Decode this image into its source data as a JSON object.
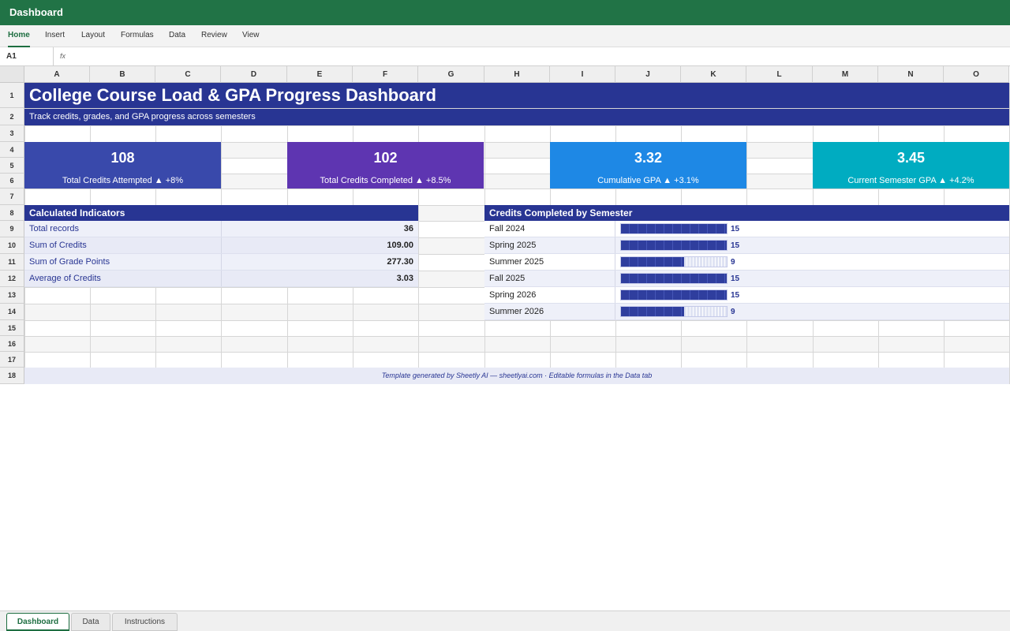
{
  "window": {
    "title": "Dashboard"
  },
  "ribbon": {
    "tabs": [
      {
        "label": "Home",
        "active": true
      },
      {
        "label": "Insert",
        "active": false
      },
      {
        "label": "Layout",
        "active": false
      },
      {
        "label": "Formulas",
        "active": false
      },
      {
        "label": "Data",
        "active": false
      },
      {
        "label": "Review",
        "active": false
      },
      {
        "label": "View",
        "active": false
      }
    ]
  },
  "formula_bar": {
    "cell_ref": "A1",
    "fx_label": "fx",
    "formula": ""
  },
  "grid": {
    "columns": [
      "A",
      "B",
      "C",
      "D",
      "E",
      "F",
      "G",
      "H",
      "I",
      "J",
      "K",
      "L",
      "M",
      "N",
      "O"
    ],
    "rows": [
      "1",
      "2",
      "3",
      "4",
      "5",
      "6",
      "7",
      "8",
      "9",
      "10",
      "11",
      "12",
      "13",
      "14",
      "15",
      "16",
      "17",
      "18"
    ]
  },
  "dashboard": {
    "title": "College Course Load & GPA Progress Dashboard",
    "subtitle": "Track credits, grades, and GPA progress across semesters",
    "kpis": [
      {
        "value": "108",
        "label": "Total Credits Attempted ▲ +8%",
        "color": "#3949ab"
      },
      {
        "value": "102",
        "label": "Total Credits Completed ▲ +8.5%",
        "color": "#5e35b1"
      },
      {
        "value": "3.32",
        "label": "Cumulative GPA ▲ +3.1%",
        "color": "#1e88e5"
      },
      {
        "value": "3.45",
        "label": "Current Semester GPA ▲ +4.2%",
        "color": "#00acc1"
      }
    ],
    "indicators": {
      "header": "Calculated Indicators",
      "rows": [
        {
          "label": "Total records",
          "value": "36"
        },
        {
          "label": "Sum of Credits",
          "value": "109.00"
        },
        {
          "label": "Sum of Grade Points",
          "value": "277.30"
        },
        {
          "label": "Average of Credits",
          "value": "3.03"
        }
      ]
    },
    "semesters": {
      "header": "Credits Completed by Semester",
      "max": 15,
      "rows": [
        {
          "label": "Fall 2024",
          "value": 15
        },
        {
          "label": "Spring 2025",
          "value": 15
        },
        {
          "label": "Summer 2025",
          "value": 9
        },
        {
          "label": "Fall 2025",
          "value": 15
        },
        {
          "label": "Spring 2026",
          "value": 15
        },
        {
          "label": "Summer 2026",
          "value": 9
        }
      ]
    },
    "footer": "Template generated by Sheetly AI — sheetlyai.com · Editable formulas in the Data tab"
  },
  "sheets": [
    {
      "label": "Dashboard",
      "active": true
    },
    {
      "label": "Data",
      "active": false
    },
    {
      "label": "Instructions",
      "active": false
    }
  ],
  "colors": {
    "accent": "#217346",
    "banner": "#283593"
  }
}
